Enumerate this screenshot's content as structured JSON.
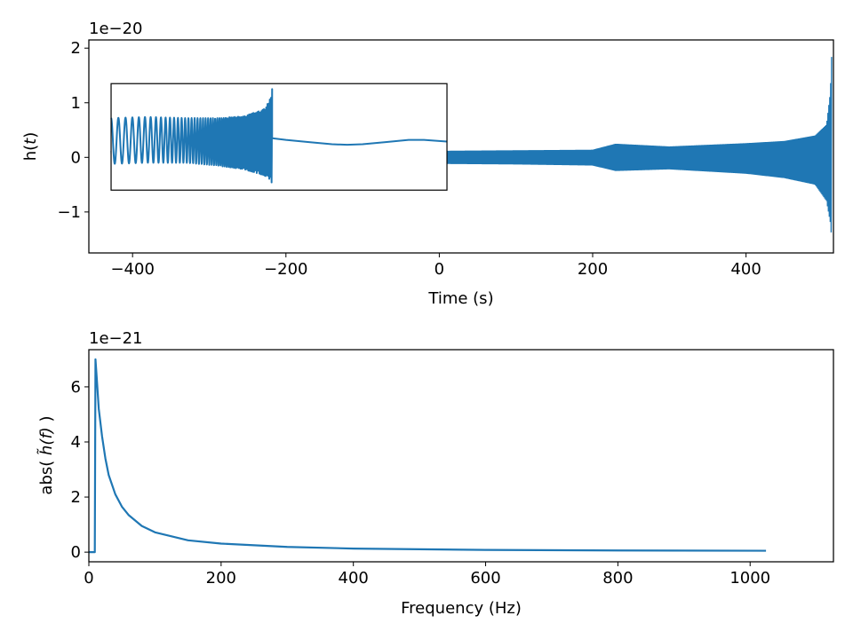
{
  "chart_data": [
    {
      "type": "line",
      "xlabel": "Time (s)",
      "ylabel_base": "h(",
      "ylabel_var": "t",
      "ylabel_close": ")",
      "offset_text": "1e−20",
      "xlim": [
        -457,
        514
      ],
      "ylim": [
        -1.75,
        2.15
      ],
      "xticks": [
        -400,
        -200,
        0,
        200,
        400
      ],
      "xtick_labels": [
        "−400",
        "−200",
        "0",
        "200",
        "400"
      ],
      "yticks": [
        -1,
        0,
        1,
        2
      ],
      "ytick_labels": [
        "−1",
        "0",
        "1",
        "2"
      ],
      "line_color": "#1f77b4",
      "series": [
        {
          "x": [
            -428,
            -300,
            -200,
            -100,
            0,
            100,
            200,
            230,
            300,
            400,
            450,
            490,
            505,
            510,
            512
          ],
          "y_upper": [
            0.12,
            0.12,
            0.12,
            0.12,
            0.12,
            0.13,
            0.14,
            0.25,
            0.2,
            0.26,
            0.3,
            0.4,
            0.6,
            1.2,
            2.0
          ],
          "y_lower": [
            -0.12,
            -0.12,
            -0.12,
            -0.12,
            -0.12,
            -0.13,
            -0.15,
            -0.25,
            -0.22,
            -0.3,
            -0.38,
            -0.5,
            -0.8,
            -1.2,
            -1.55
          ]
        }
      ],
      "inset": {
        "envelope_x": [
          -428,
          -380,
          -330,
          -290,
          -255,
          -235,
          -225,
          -220,
          -218
        ],
        "envelope_upper": [
          0.72,
          0.74,
          0.72,
          0.72,
          0.75,
          0.85,
          0.95,
          1.1,
          1.25
        ],
        "envelope_lower": [
          -0.12,
          -0.1,
          -0.1,
          -0.15,
          -0.22,
          -0.3,
          -0.35,
          -0.42,
          -0.5
        ],
        "tail_x": [
          -218,
          -200,
          -170,
          -140,
          -120,
          -100,
          -70,
          -40,
          -20,
          0,
          10
        ],
        "tail_y": [
          0.35,
          0.32,
          0.28,
          0.24,
          0.23,
          0.24,
          0.28,
          0.32,
          0.32,
          0.3,
          0.29
        ]
      }
    },
    {
      "type": "line",
      "xlabel": "Frequency (Hz)",
      "ylabel_prefix": "abs( ",
      "ylabel_var": "h̃(f)",
      "ylabel_suffix": " )",
      "offset_text": "1e−21",
      "xlim": [
        0,
        1126
      ],
      "ylim": [
        -0.35,
        7.35
      ],
      "xticks": [
        0,
        200,
        400,
        600,
        800,
        1000
      ],
      "xtick_labels": [
        "0",
        "200",
        "400",
        "600",
        "800",
        "1000"
      ],
      "yticks": [
        0,
        2,
        4,
        6
      ],
      "ytick_labels": [
        "0",
        "2",
        "4",
        "6"
      ],
      "line_color": "#1f77b4",
      "series": [
        {
          "x": [
            0,
            9,
            10,
            12,
            15,
            20,
            25,
            30,
            40,
            50,
            60,
            80,
            100,
            150,
            200,
            300,
            400,
            600,
            800,
            1024
          ],
          "y": [
            0,
            0,
            7.0,
            6.3,
            5.2,
            4.2,
            3.4,
            2.8,
            2.1,
            1.65,
            1.35,
            0.95,
            0.72,
            0.43,
            0.31,
            0.19,
            0.13,
            0.08,
            0.06,
            0.05
          ]
        }
      ]
    }
  ]
}
